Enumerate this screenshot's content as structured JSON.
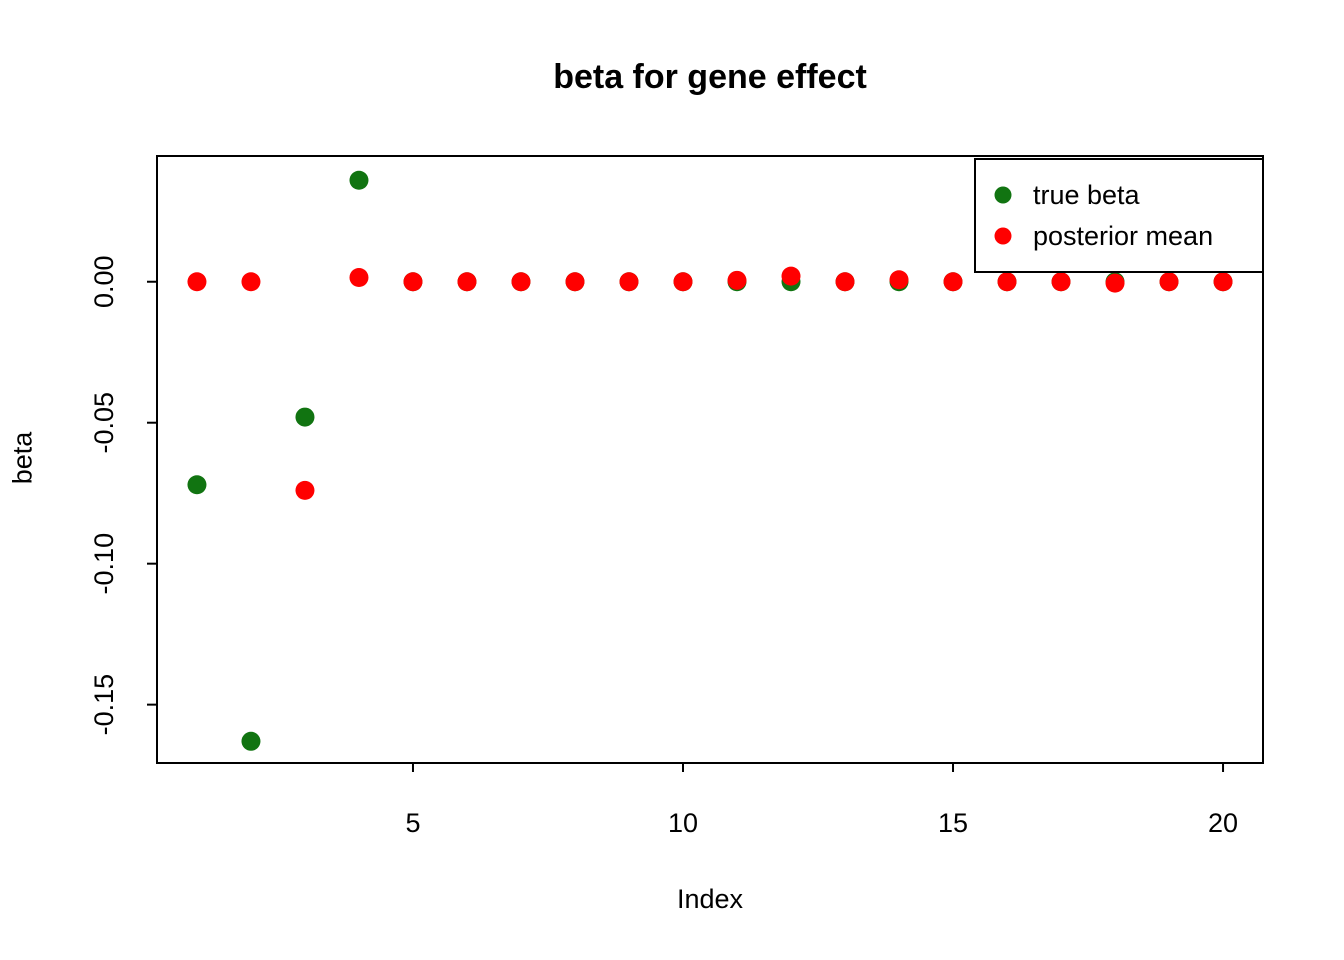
{
  "chart_data": {
    "type": "scatter",
    "title": "beta for gene effect",
    "xlabel": "Index",
    "ylabel": "beta",
    "x": [
      1,
      2,
      3,
      4,
      5,
      6,
      7,
      8,
      9,
      10,
      11,
      12,
      13,
      14,
      15,
      16,
      17,
      18,
      19,
      20
    ],
    "series": [
      {
        "name": "true beta",
        "color": "#117411",
        "values": [
          -0.072,
          -0.163,
          -0.048,
          0.036,
          0,
          0,
          0,
          0,
          0,
          0,
          0,
          0,
          0,
          0,
          0,
          0,
          0,
          0,
          0,
          0
        ]
      },
      {
        "name": "posterior mean",
        "color": "#ff0000",
        "values": [
          0,
          0,
          -0.074,
          0.0015,
          0,
          0,
          0,
          0,
          0,
          0,
          0.0005,
          0.002,
          0,
          0.0007,
          0,
          0,
          0,
          -0.0005,
          0,
          0
        ]
      }
    ],
    "xlim": [
      0.26,
      20.74
    ],
    "ylim": [
      -0.1707,
      0.0446
    ],
    "x_ticks": [
      5,
      10,
      15,
      20
    ],
    "x_tick_labels": [
      "5",
      "10",
      "15",
      "20"
    ],
    "y_ticks": [
      0,
      -0.05,
      -0.1,
      -0.15
    ],
    "y_tick_labels": [
      "0.00",
      "-0.05",
      "-0.10",
      "-0.15"
    ],
    "grid": false,
    "legend_position": "topright",
    "axis_color": "#000000",
    "background_color": "#ffffff",
    "point_radius": 9.5
  }
}
